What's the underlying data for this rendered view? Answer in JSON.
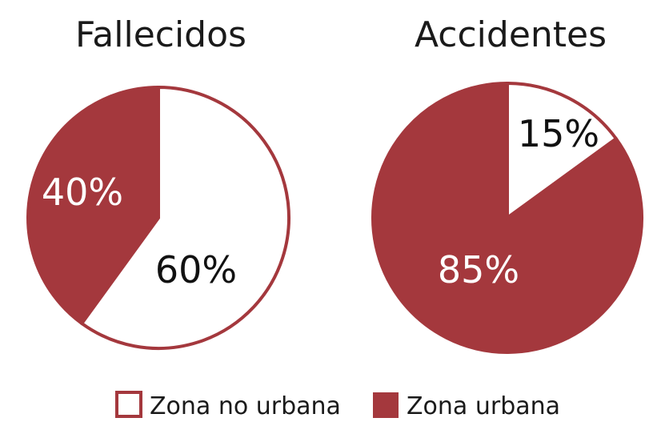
{
  "colors": {
    "urbana": "#a4383d",
    "no_urbana": "#ffffff",
    "outline": "#a4383d"
  },
  "chart_data": [
    {
      "type": "pie",
      "title": "Fallecidos",
      "slices": [
        {
          "label": "Zona no urbana",
          "value": 60,
          "text": "60%"
        },
        {
          "label": "Zona urbana",
          "value": 40,
          "text": "40%"
        }
      ]
    },
    {
      "type": "pie",
      "title": "Accidentes",
      "slices": [
        {
          "label": "Zona no urbana",
          "value": 15,
          "text": "15%"
        },
        {
          "label": "Zona urbana",
          "value": 85,
          "text": "85%"
        }
      ]
    }
  ],
  "legend": [
    {
      "label": "Zona no urbana",
      "color_key": "no_urbana"
    },
    {
      "label": "Zona urbana",
      "color_key": "urbana"
    }
  ]
}
